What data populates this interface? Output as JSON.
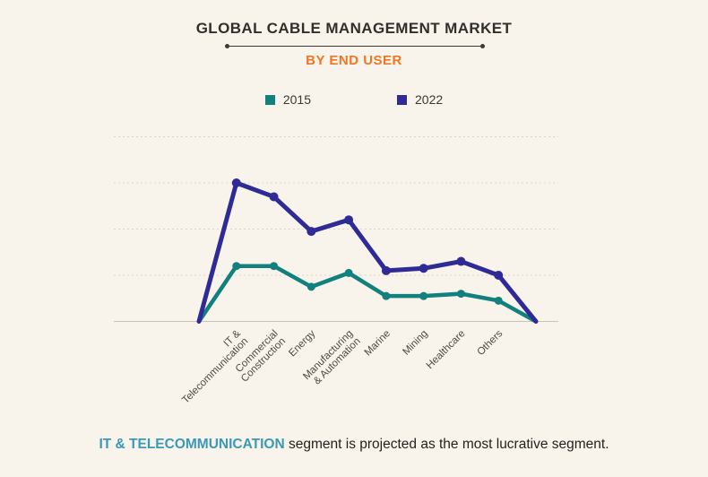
{
  "header": {
    "title": "GLOBAL CABLE MANAGEMENT MARKET",
    "subtitle": "BY END USER"
  },
  "legend": [
    {
      "label": "2015",
      "color": "#12807d"
    },
    {
      "label": "2022",
      "color": "#2e2b97"
    }
  ],
  "chart_data": {
    "type": "line",
    "title": "Global Cable Management Market by End User",
    "categories": [
      "IT & Telecommunication",
      "Commercial Construction",
      "Energy",
      "Manufacturing & Automation",
      "Marine",
      "Mining",
      "Healthcare",
      "Others"
    ],
    "category_label_lines": [
      [
        "IT &",
        "Telecommunication"
      ],
      [
        "Commercial",
        "Construction"
      ],
      [
        "Energy"
      ],
      [
        "Manufacturing",
        "& Automation"
      ],
      [
        "Marine"
      ],
      [
        "Mining"
      ],
      [
        "Healthcare"
      ],
      [
        "Others"
      ]
    ],
    "series": [
      {
        "name": "2015",
        "color": "#12807d",
        "values": [
          1.2,
          1.2,
          0.75,
          1.05,
          0.55,
          0.55,
          0.6,
          0.45
        ]
      },
      {
        "name": "2022",
        "color": "#2e2b97",
        "values": [
          3.0,
          2.7,
          1.95,
          2.2,
          1.1,
          1.15,
          1.3,
          1.0
        ]
      }
    ],
    "value_units": "relative (no y-axis tick labels shown; gridlines at 0,1,2,3,4)",
    "ylim": [
      0,
      4
    ],
    "xlabel": "",
    "ylabel": "",
    "grid": "horizontal dashed, 5 lines",
    "legend_position": "top-center",
    "lines_start_and_end_at_zero": true
  },
  "caption": {
    "highlight": "IT & TELECOMMUNICATION",
    "text": " segment is projected as the most lucrative segment."
  },
  "colors": {
    "background": "#f8f4ec",
    "title_text": "#312f2b",
    "subtitle_accent": "#ee7623",
    "series_2015": "#12807d",
    "series_2022": "#2e2b97",
    "gridline": "#dbd5c8",
    "axis_baseline": "#c8c3b6",
    "axis_label_text": "#4c4a44",
    "caption_highlight": "#3a99b6"
  }
}
